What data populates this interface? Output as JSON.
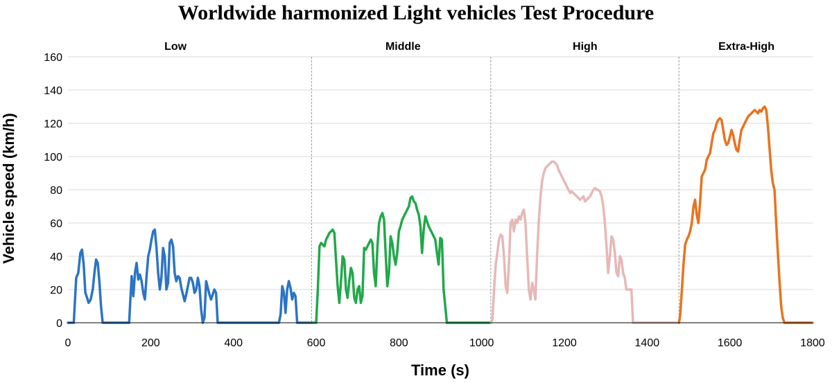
{
  "chart_data": {
    "type": "line",
    "title": "Worldwide harmonized Light vehicles Test Procedure",
    "xlabel": "Time (s)",
    "ylabel": "Vehicle speed (km/h)",
    "xlim": [
      0,
      1800
    ],
    "ylim": [
      0,
      160
    ],
    "xticks": [
      "0",
      "200",
      "400",
      "600",
      "800",
      "1000",
      "1200",
      "1400",
      "1600",
      "1800"
    ],
    "yticks": [
      "0",
      "20",
      "40",
      "60",
      "80",
      "100",
      "120",
      "140",
      "160"
    ],
    "grid": "horizontal",
    "phase_boundaries": [
      589,
      1022,
      1477
    ],
    "phases": [
      {
        "label": "Low",
        "x_center": 260
      },
      {
        "label": "Middle",
        "x_center": 810
      },
      {
        "label": "High",
        "x_center": 1250
      },
      {
        "label": "Extra-High",
        "x_center": 1640
      }
    ],
    "series": [
      {
        "color": "#2b74c4",
        "x": [
          0,
          10,
          14,
          20,
          25,
          30,
          34,
          38,
          42,
          45,
          50,
          55,
          60,
          64,
          68,
          72,
          76,
          80,
          84,
          88,
          92,
          96,
          100,
          104,
          108,
          112,
          116,
          120,
          124,
          128,
          132,
          136,
          140,
          144,
          148,
          150,
          154,
          158,
          162,
          166,
          170,
          174,
          178,
          182,
          186,
          190,
          194,
          198,
          202,
          206,
          210,
          214,
          218,
          222,
          226,
          230,
          234,
          238,
          242,
          246,
          250,
          254,
          258,
          262,
          266,
          270,
          274,
          278,
          282,
          286,
          290,
          294,
          298,
          302,
          306,
          310,
          314,
          318,
          322,
          326,
          330,
          334,
          338,
          342,
          346,
          350,
          354,
          358,
          362,
          366,
          370,
          374,
          378,
          382,
          386,
          390,
          394,
          398,
          402,
          406,
          410,
          414,
          418,
          422,
          426,
          430,
          434,
          438,
          442,
          446,
          450,
          460,
          470,
          480,
          490,
          500,
          510,
          514,
          518,
          522,
          526,
          530,
          534,
          538,
          542,
          546,
          550,
          554,
          558,
          562,
          566,
          570,
          574,
          578,
          582,
          586,
          589
        ],
        "y": [
          0,
          0,
          0,
          27,
          30,
          42,
          44,
          35,
          18,
          16,
          12,
          14,
          20,
          30,
          38,
          36,
          25,
          10,
          0,
          0,
          0,
          0,
          0,
          0,
          0,
          0,
          0,
          0,
          0,
          0,
          0,
          0,
          0,
          0,
          0,
          10,
          28,
          16,
          30,
          36,
          26,
          29,
          25,
          18,
          14,
          28,
          40,
          44,
          50,
          55,
          56,
          45,
          30,
          20,
          27,
          45,
          40,
          20,
          24,
          48,
          50,
          46,
          30,
          25,
          28,
          27,
          21,
          17,
          13,
          17,
          22,
          27,
          27,
          24,
          18,
          20,
          27,
          22,
          8,
          0,
          3,
          25,
          21,
          17,
          14,
          17,
          20,
          18,
          0,
          0,
          0,
          0,
          0,
          0,
          0,
          0,
          0,
          0,
          0,
          0,
          0,
          0,
          0,
          0,
          0,
          0,
          0,
          0,
          0,
          0,
          0,
          0,
          0,
          0,
          0,
          0,
          0,
          5,
          22,
          18,
          6,
          20,
          25,
          21,
          14,
          18,
          16,
          0,
          0,
          0,
          0,
          0,
          0,
          0,
          0,
          0,
          0
        ],
        "y_note": ""
      },
      {
        "color": "#21a84a",
        "x": [
          589,
          594,
          600,
          604,
          608,
          612,
          616,
          620,
          624,
          628,
          632,
          636,
          640,
          644,
          648,
          652,
          656,
          660,
          664,
          668,
          672,
          676,
          680,
          684,
          688,
          692,
          696,
          700,
          704,
          708,
          712,
          716,
          720,
          724,
          728,
          732,
          736,
          740,
          744,
          748,
          752,
          756,
          760,
          764,
          768,
          772,
          776,
          780,
          784,
          788,
          792,
          796,
          800,
          804,
          808,
          812,
          816,
          820,
          824,
          828,
          832,
          836,
          840,
          844,
          848,
          852,
          856,
          860,
          864,
          868,
          872,
          876,
          880,
          884,
          888,
          892,
          896,
          900,
          904,
          908,
          912,
          916,
          920,
          924,
          928,
          932,
          936,
          940,
          944,
          948,
          952,
          956,
          960,
          964,
          968,
          972,
          976,
          980,
          990,
          1000,
          1010,
          1022
        ],
        "y": [
          0,
          0,
          0,
          20,
          46,
          48,
          47,
          46,
          50,
          52,
          54,
          55,
          56,
          54,
          38,
          22,
          12,
          25,
          40,
          38,
          20,
          15,
          25,
          33,
          30,
          15,
          12,
          20,
          22,
          12,
          16,
          45,
          44,
          46,
          48,
          50,
          48,
          30,
          22,
          45,
          60,
          64,
          66,
          62,
          42,
          22,
          30,
          52,
          48,
          40,
          35,
          42,
          55,
          58,
          62,
          64,
          66,
          68,
          70,
          75,
          76,
          73,
          72,
          68,
          65,
          58,
          42,
          56,
          64,
          61,
          58,
          56,
          54,
          52,
          50,
          42,
          35,
          51,
          50,
          20,
          10,
          0,
          0,
          0,
          0,
          0,
          0,
          0,
          0,
          0,
          0,
          0,
          0,
          0,
          0,
          0,
          0,
          0,
          0,
          0,
          0,
          0
        ],
        "y_note": ""
      },
      {
        "color": "#e6b8b8",
        "x": [
          1022,
          1026,
          1030,
          1034,
          1038,
          1042,
          1046,
          1050,
          1054,
          1058,
          1062,
          1066,
          1070,
          1074,
          1078,
          1082,
          1086,
          1090,
          1094,
          1098,
          1102,
          1106,
          1110,
          1114,
          1118,
          1122,
          1126,
          1130,
          1134,
          1138,
          1142,
          1146,
          1150,
          1154,
          1158,
          1162,
          1166,
          1170,
          1174,
          1178,
          1182,
          1186,
          1190,
          1194,
          1198,
          1202,
          1206,
          1210,
          1214,
          1218,
          1222,
          1226,
          1230,
          1234,
          1238,
          1242,
          1246,
          1250,
          1254,
          1258,
          1262,
          1266,
          1270,
          1274,
          1278,
          1282,
          1286,
          1290,
          1294,
          1298,
          1302,
          1306,
          1310,
          1314,
          1318,
          1322,
          1326,
          1330,
          1334,
          1338,
          1342,
          1346,
          1350,
          1354,
          1358,
          1362,
          1366,
          1370,
          1374,
          1378,
          1382,
          1386,
          1390,
          1394,
          1398,
          1402,
          1406,
          1410,
          1414,
          1418,
          1422,
          1426,
          1430,
          1434,
          1438,
          1442,
          1446,
          1450,
          1454,
          1458,
          1462,
          1466,
          1470,
          1477
        ],
        "y": [
          0,
          2,
          20,
          35,
          42,
          50,
          53,
          52,
          40,
          22,
          18,
          35,
          60,
          62,
          55,
          62,
          60,
          64,
          62,
          66,
          68,
          60,
          40,
          20,
          14,
          24,
          20,
          14,
          40,
          60,
          75,
          85,
          90,
          93,
          94,
          95,
          96,
          97,
          97,
          96,
          95,
          92,
          90,
          88,
          86,
          84,
          82,
          80,
          78,
          79,
          78,
          77,
          76,
          75,
          74,
          75,
          76,
          73,
          74,
          75,
          76,
          78,
          80,
          81,
          80,
          80,
          79,
          76,
          70,
          60,
          45,
          30,
          40,
          52,
          50,
          42,
          30,
          28,
          40,
          38,
          30,
          27,
          20,
          20,
          20,
          20,
          0,
          0,
          0,
          0,
          0,
          0,
          0,
          0,
          0,
          0,
          0,
          0,
          0,
          0,
          0,
          0,
          0,
          0,
          0,
          0,
          0,
          0,
          0,
          0,
          0,
          0,
          0,
          0
        ],
        "y_note": ""
      },
      {
        "color": "#e8731f",
        "x": [
          1477,
          1480,
          1484,
          1488,
          1492,
          1496,
          1500,
          1504,
          1508,
          1512,
          1516,
          1520,
          1524,
          1528,
          1532,
          1536,
          1540,
          1544,
          1548,
          1552,
          1556,
          1560,
          1564,
          1568,
          1572,
          1576,
          1580,
          1584,
          1588,
          1592,
          1596,
          1600,
          1604,
          1608,
          1612,
          1616,
          1620,
          1624,
          1628,
          1632,
          1636,
          1640,
          1644,
          1648,
          1652,
          1656,
          1660,
          1664,
          1668,
          1672,
          1676,
          1680,
          1684,
          1688,
          1692,
          1696,
          1700,
          1704,
          1708,
          1712,
          1716,
          1720,
          1724,
          1728,
          1732,
          1736,
          1740,
          1744,
          1748,
          1752,
          1756,
          1760,
          1764,
          1768,
          1772,
          1776,
          1780,
          1784,
          1788,
          1792,
          1796,
          1800
        ],
        "y": [
          0,
          5,
          20,
          35,
          47,
          50,
          52,
          55,
          60,
          70,
          74,
          65,
          60,
          72,
          88,
          90,
          92,
          98,
          100,
          102,
          108,
          114,
          116,
          120,
          122,
          123,
          122,
          116,
          110,
          107,
          108,
          112,
          116,
          113,
          108,
          104,
          103,
          110,
          116,
          118,
          120,
          122,
          124,
          125,
          126,
          127,
          128,
          127,
          126,
          128,
          127,
          129,
          130,
          128,
          118,
          105,
          92,
          84,
          80,
          60,
          42,
          25,
          10,
          3,
          0,
          0,
          0,
          0,
          0,
          0,
          0,
          0,
          0,
          0,
          0,
          0,
          0,
          0,
          0,
          0,
          0,
          0
        ],
        "y_note": ""
      }
    ]
  }
}
